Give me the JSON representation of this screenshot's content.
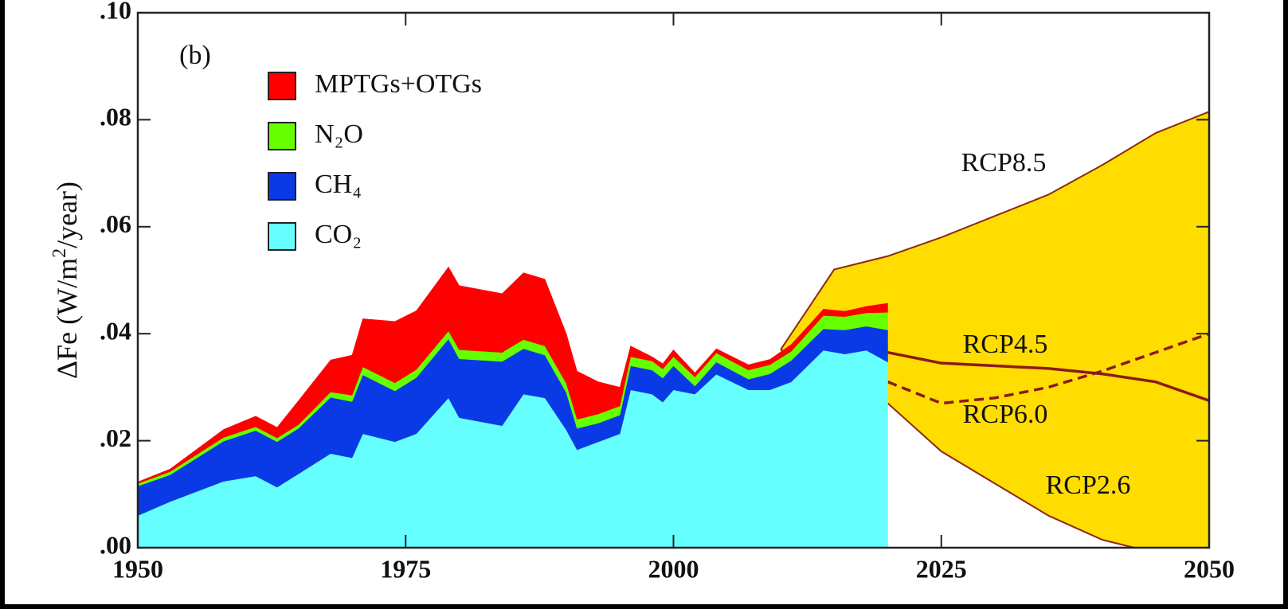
{
  "chart_data": {
    "type": "stacked_area",
    "panel_label": "(b)",
    "ylabel": {
      "main": "ΔFe (W/m",
      "sup": "2",
      "rest": "/year)"
    },
    "x": [
      1950,
      1953,
      1958,
      1961,
      1963,
      1965,
      1968,
      1970,
      1971,
      1974,
      1976,
      1979,
      1980,
      1984,
      1986,
      1988,
      1990,
      1991,
      1993,
      1995,
      1996,
      1998,
      1999,
      2000,
      2002,
      2004,
      2007,
      2009,
      2011,
      2014,
      2016,
      2018,
      2020
    ],
    "series": [
      {
        "name": "CO₂",
        "color": "#66ffff",
        "values": [
          0.006,
          0.0086,
          0.0124,
          0.0134,
          0.0113,
          0.0138,
          0.0176,
          0.0168,
          0.0213,
          0.0198,
          0.0213,
          0.028,
          0.0243,
          0.0228,
          0.0287,
          0.028,
          0.022,
          0.0183,
          0.0198,
          0.0213,
          0.0295,
          0.0287,
          0.0272,
          0.0295,
          0.0287,
          0.0324,
          0.0295,
          0.0295,
          0.031,
          0.0369,
          0.0362,
          0.0369,
          0.0347
        ]
      },
      {
        "name": "CH₄",
        "color": "#0a3ae6",
        "values": [
          0.0055,
          0.005,
          0.0075,
          0.0085,
          0.0085,
          0.0085,
          0.0105,
          0.0105,
          0.011,
          0.0095,
          0.0105,
          0.011,
          0.011,
          0.012,
          0.0085,
          0.008,
          0.007,
          0.004,
          0.0035,
          0.0035,
          0.0045,
          0.0045,
          0.0045,
          0.0045,
          0.0015,
          0.0023,
          0.002,
          0.003,
          0.004,
          0.004,
          0.0045,
          0.0045,
          0.006
        ]
      },
      {
        "name": "N₂O",
        "color": "#66ff00",
        "values": [
          0.0005,
          0.0006,
          0.0007,
          0.0007,
          0.0007,
          0.0007,
          0.001,
          0.0012,
          0.0015,
          0.0015,
          0.0015,
          0.0015,
          0.0017,
          0.0017,
          0.0017,
          0.0017,
          0.0017,
          0.0017,
          0.0017,
          0.0017,
          0.0017,
          0.0017,
          0.0017,
          0.0017,
          0.0017,
          0.0017,
          0.0017,
          0.0017,
          0.0017,
          0.0025,
          0.0025,
          0.0025,
          0.0033
        ]
      },
      {
        "name": "MPTGs+OTGs",
        "color": "#ff0000",
        "values": [
          0.0003,
          0.0005,
          0.0015,
          0.002,
          0.002,
          0.0045,
          0.006,
          0.0075,
          0.009,
          0.0115,
          0.011,
          0.012,
          0.012,
          0.011,
          0.0125,
          0.0125,
          0.0093,
          0.009,
          0.006,
          0.0035,
          0.002,
          0.0008,
          0.001,
          0.0013,
          0.0008,
          0.0008,
          0.001,
          0.001,
          0.0013,
          0.0012,
          0.001,
          0.0012,
          0.0017
        ]
      }
    ],
    "projection_fill": "#ffdd00",
    "projection_edge": "#8b2a14",
    "projections": [
      {
        "name": "RCP8.5",
        "style": "envelope",
        "x": [
          2010,
          2015,
          2020,
          2025,
          2030,
          2035,
          2040,
          2045,
          2050
        ],
        "values": [
          0.037,
          0.052,
          0.0545,
          0.058,
          0.062,
          0.066,
          0.0715,
          0.0775,
          0.0815
        ]
      },
      {
        "name": "RCP4.5",
        "style": "solid",
        "color": "#8b1a1a",
        "x": [
          2020,
          2025,
          2030,
          2035,
          2040,
          2045,
          2050
        ],
        "values": [
          0.0365,
          0.0345,
          0.034,
          0.0335,
          0.0325,
          0.031,
          0.0275
        ]
      },
      {
        "name": "RCP6.0",
        "style": "dashed",
        "color": "#8b1a1a",
        "x": [
          2020,
          2025,
          2030,
          2035,
          2040,
          2045,
          2050
        ],
        "values": [
          0.031,
          0.027,
          0.028,
          0.03,
          0.033,
          0.0365,
          0.04
        ]
      },
      {
        "name": "RCP2.6",
        "style": "envelope",
        "x": [
          2010,
          2015,
          2020,
          2025,
          2030,
          2035,
          2040,
          2043
        ],
        "values": [
          0.037,
          0.033,
          0.027,
          0.018,
          0.012,
          0.006,
          0.0015,
          0
        ]
      }
    ],
    "xlim": [
      1950,
      2050
    ],
    "xticks": [
      1950,
      1975,
      2000,
      2025,
      2050
    ],
    "ylim": [
      0,
      0.1
    ],
    "yticks": [
      {
        "value": 0,
        "label": ".00"
      },
      {
        "value": 0.02,
        "label": ".02"
      },
      {
        "value": 0.04,
        "label": ".04"
      },
      {
        "value": 0.06,
        "label": ".06"
      },
      {
        "value": 0.08,
        "label": ".08"
      },
      {
        "value": 0.1,
        "label": ".10"
      }
    ]
  }
}
